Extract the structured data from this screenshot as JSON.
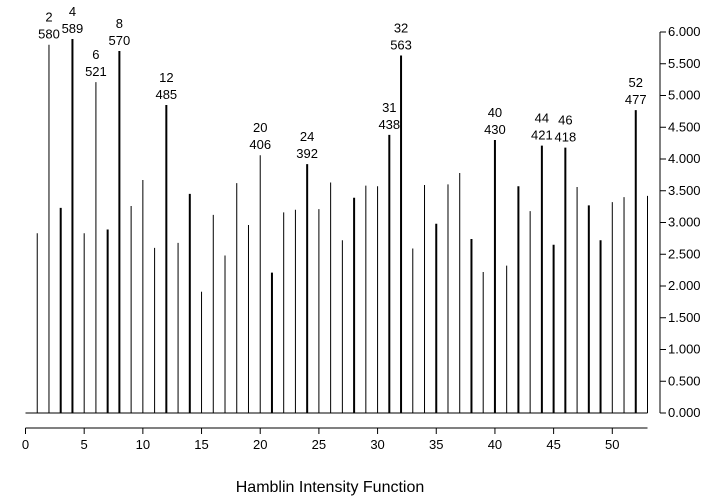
{
  "chart_data": {
    "type": "bar",
    "xlabel": "Hamblin Intensity Function",
    "ylabel": "",
    "title": "",
    "xlim": [
      0,
      53
    ],
    "ylim": [
      0,
      6000
    ],
    "x_ticks": [
      0,
      5,
      10,
      15,
      20,
      25,
      30,
      35,
      40,
      45,
      50
    ],
    "y_ticks": [
      0,
      500,
      1000,
      1500,
      2000,
      2500,
      3000,
      3500,
      4000,
      4500,
      5000,
      5500,
      6000
    ],
    "y_tick_labels": [
      "0.000",
      "0.500",
      "1.000",
      "1.500",
      "2.000",
      "2.500",
      "3.000",
      "3.500",
      "4.000",
      "4.500",
      "5.000",
      "5.500",
      "6.000"
    ],
    "y_axis_side": "right",
    "x": [
      1,
      2,
      3,
      4,
      5,
      6,
      7,
      8,
      9,
      10,
      11,
      12,
      13,
      14,
      15,
      16,
      17,
      18,
      19,
      20,
      21,
      22,
      23,
      24,
      25,
      26,
      27,
      28,
      29,
      30,
      31,
      32,
      33,
      34,
      35,
      36,
      37,
      38,
      39,
      40,
      41,
      42,
      43,
      44,
      45,
      46,
      47,
      48,
      49,
      50,
      51,
      52,
      53
    ],
    "values": [
      2830,
      5800,
      3230,
      5890,
      2830,
      5210,
      2890,
      5700,
      3260,
      3670,
      2600,
      4850,
      2680,
      3450,
      1910,
      3120,
      2480,
      3620,
      2960,
      4060,
      2210,
      3160,
      3200,
      3920,
      3210,
      3630,
      2720,
      3390,
      3580,
      3570,
      4380,
      5630,
      2590,
      3590,
      2980,
      3600,
      3780,
      2740,
      2220,
      4300,
      2320,
      3570,
      3180,
      4210,
      2650,
      4180,
      3560,
      3270,
      2720,
      3320,
      3400,
      4770,
      3420
    ],
    "bold": [
      3,
      4,
      7,
      8,
      12,
      14,
      21,
      24,
      28,
      31,
      32,
      35,
      38,
      40,
      42,
      44,
      45,
      46,
      48,
      49,
      52
    ],
    "peaks": [
      {
        "x": 2,
        "num": "2",
        "val": "580"
      },
      {
        "x": 4,
        "num": "4",
        "val": "589"
      },
      {
        "x": 6,
        "num": "6",
        "val": "521"
      },
      {
        "x": 8,
        "num": "8",
        "val": "570"
      },
      {
        "x": 12,
        "num": "12",
        "val": "485"
      },
      {
        "x": 20,
        "num": "20",
        "val": "406"
      },
      {
        "x": 24,
        "num": "24",
        "val": "392"
      },
      {
        "x": 31,
        "num": "31",
        "val": "438"
      },
      {
        "x": 32,
        "num": "32",
        "val": "563"
      },
      {
        "x": 40,
        "num": "40",
        "val": "430"
      },
      {
        "x": 44,
        "num": "44",
        "val": "421"
      },
      {
        "x": 46,
        "num": "46",
        "val": "418"
      },
      {
        "x": 52,
        "num": "52",
        "val": "477"
      }
    ]
  }
}
